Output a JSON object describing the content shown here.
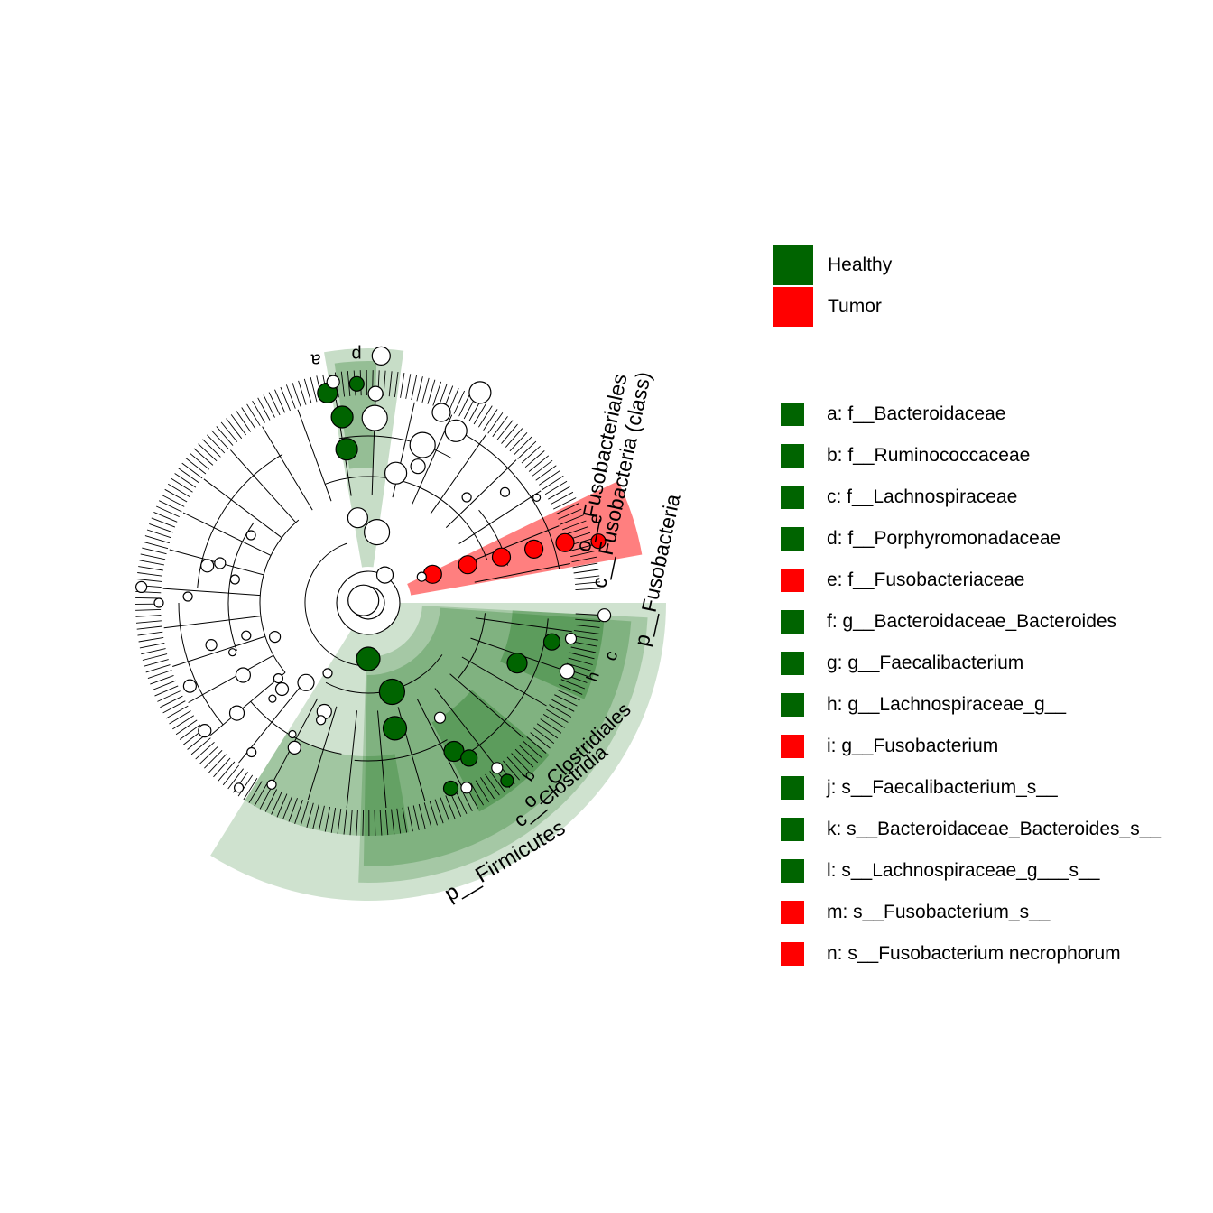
{
  "colors": {
    "healthy": "#006400",
    "tumor": "#FF0000"
  },
  "groups": [
    {
      "name": "Healthy",
      "color": "#006400"
    },
    {
      "name": "Tumor",
      "color": "#FF0000"
    }
  ],
  "clades": [
    {
      "key": "a",
      "label": "a: f__Bacteroidaceae",
      "group": "Healthy"
    },
    {
      "key": "b",
      "label": "b: f__Ruminococcaceae",
      "group": "Healthy"
    },
    {
      "key": "c",
      "label": "c: f__Lachnospiraceae",
      "group": "Healthy"
    },
    {
      "key": "d",
      "label": "d: f__Porphyromonadaceae",
      "group": "Healthy"
    },
    {
      "key": "e",
      "label": "e: f__Fusobacteriaceae",
      "group": "Tumor"
    },
    {
      "key": "f",
      "label": "f: g__Bacteroidaceae_Bacteroides",
      "group": "Healthy"
    },
    {
      "key": "g",
      "label": "g: g__Faecalibacterium",
      "group": "Healthy"
    },
    {
      "key": "h",
      "label": "h: g__Lachnospiraceae_g__",
      "group": "Healthy"
    },
    {
      "key": "i",
      "label": "i: g__Fusobacterium",
      "group": "Tumor"
    },
    {
      "key": "j",
      "label": "j: s__Faecalibacterium_s__",
      "group": "Healthy"
    },
    {
      "key": "k",
      "label": "k: s__Bacteroidaceae_Bacteroides_s__",
      "group": "Healthy"
    },
    {
      "key": "l",
      "label": "l: s__Lachnospiraceae_g___s__",
      "group": "Healthy"
    },
    {
      "key": "m",
      "label": "m: s__Fusobacterium_s__",
      "group": "Tumor"
    },
    {
      "key": "n",
      "label": "n: s__Fusobacterium necrophorum",
      "group": "Tumor"
    }
  ],
  "tree_labels": {
    "firmicutes": "p__Firmicutes",
    "clostridia": "c__Clostridia",
    "clostridiales": "o__Clostridiales",
    "fuso_phylum": "p__Fusobacteria",
    "fuso_class": "c__Fusobacteria (class)",
    "fuso_order": "o__Fusobacteriales",
    "short": {
      "a": "a",
      "b": "b",
      "c": "c",
      "d": "d",
      "e": "e",
      "h": "h"
    }
  }
}
